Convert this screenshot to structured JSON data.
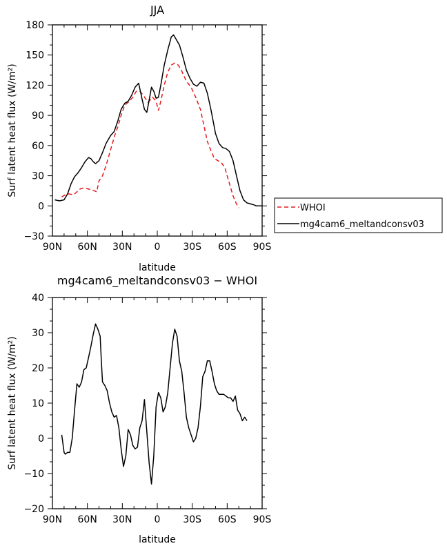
{
  "chart_data": [
    {
      "type": "line",
      "title": "JJA",
      "xlabel": "latitude",
      "ylabel": "Surf latent heat flux (W/m²)",
      "xlim": [
        90,
        -90
      ],
      "ylim": [
        -30,
        180
      ],
      "x_ticks": [
        {
          "value": 90,
          "label": "90N"
        },
        {
          "value": 60,
          "label": "60N"
        },
        {
          "value": 30,
          "label": "30N"
        },
        {
          "value": 0,
          "label": "0"
        },
        {
          "value": -30,
          "label": "30S"
        },
        {
          "value": -60,
          "label": "60S"
        },
        {
          "value": -90,
          "label": "90S"
        }
      ],
      "y_ticks": [
        {
          "value": -30,
          "label": "−30"
        },
        {
          "value": 0,
          "label": "0"
        },
        {
          "value": 30,
          "label": "30"
        },
        {
          "value": 60,
          "label": "60"
        },
        {
          "value": 90,
          "label": "90"
        },
        {
          "value": 120,
          "label": "120"
        },
        {
          "value": 150,
          "label": "150"
        },
        {
          "value": 180,
          "label": "180"
        }
      ],
      "legend": "outside-right",
      "series": [
        {
          "name": "WHOI",
          "color": "#e41a1c",
          "dash": "dashed",
          "points": [
            [
              82,
              9
            ],
            [
              79,
              11
            ],
            [
              76,
              12
            ],
            [
              72,
              11
            ],
            [
              69,
              14
            ],
            [
              66,
              17
            ],
            [
              63,
              18
            ],
            [
              60,
              17
            ],
            [
              56,
              16
            ],
            [
              52,
              14
            ],
            [
              50,
              25
            ],
            [
              47,
              30
            ],
            [
              44,
              40
            ],
            [
              40,
              56
            ],
            [
              36,
              72
            ],
            [
              34,
              78
            ],
            [
              31,
              90
            ],
            [
              28,
              100
            ],
            [
              24,
              104
            ],
            [
              21,
              108
            ],
            [
              18,
              114
            ],
            [
              15,
              114
            ],
            [
              12,
              110
            ],
            [
              8,
              103
            ],
            [
              4,
              108
            ],
            [
              1,
              104
            ],
            [
              -1,
              95
            ],
            [
              -3,
              104
            ],
            [
              -6,
              120
            ],
            [
              -9,
              133
            ],
            [
              -12,
              140
            ],
            [
              -15,
              142
            ],
            [
              -18,
              140
            ],
            [
              -21,
              134
            ],
            [
              -25,
              124
            ],
            [
              -29,
              118
            ],
            [
              -33,
              108
            ],
            [
              -37,
              96
            ],
            [
              -40,
              80
            ],
            [
              -43,
              64
            ],
            [
              -46,
              55
            ],
            [
              -49,
              47
            ],
            [
              -52,
              45
            ],
            [
              -55,
              43
            ],
            [
              -58,
              38
            ],
            [
              -60,
              30
            ],
            [
              -62,
              22
            ],
            [
              -65,
              10
            ],
            [
              -68,
              2
            ],
            [
              -70,
              -2
            ]
          ]
        },
        {
          "name": "mg4cam6_meltandconsv03",
          "color": "#000000",
          "dash": "solid",
          "points": [
            [
              88,
              6
            ],
            [
              84,
              5
            ],
            [
              80,
              6
            ],
            [
              77,
              12
            ],
            [
              74,
              22
            ],
            [
              71,
              29
            ],
            [
              68,
              33
            ],
            [
              65,
              38
            ],
            [
              62,
              44
            ],
            [
              59,
              48
            ],
            [
              57,
              47
            ],
            [
              55,
              44
            ],
            [
              53,
              42
            ],
            [
              50,
              45
            ],
            [
              47,
              53
            ],
            [
              44,
              62
            ],
            [
              40,
              70
            ],
            [
              37,
              74
            ],
            [
              34,
              84
            ],
            [
              31,
              96
            ],
            [
              28,
              102
            ],
            [
              25,
              104
            ],
            [
              22,
              110
            ],
            [
              19,
              118
            ],
            [
              16,
              122
            ],
            [
              13,
              106
            ],
            [
              11,
              96
            ],
            [
              9,
              93
            ],
            [
              7,
              105
            ],
            [
              5,
              118
            ],
            [
              3,
              114
            ],
            [
              1,
              107
            ],
            [
              -1,
              108
            ],
            [
              -3,
              120
            ],
            [
              -6,
              140
            ],
            [
              -9,
              155
            ],
            [
              -12,
              168
            ],
            [
              -14,
              170
            ],
            [
              -16,
              166
            ],
            [
              -19,
              160
            ],
            [
              -22,
              148
            ],
            [
              -25,
              135
            ],
            [
              -28,
              127
            ],
            [
              -31,
              121
            ],
            [
              -34,
              119
            ],
            [
              -37,
              123
            ],
            [
              -40,
              122
            ],
            [
              -43,
              112
            ],
            [
              -46,
              96
            ],
            [
              -48,
              84
            ],
            [
              -50,
              72
            ],
            [
              -53,
              62
            ],
            [
              -56,
              58
            ],
            [
              -59,
              57
            ],
            [
              -62,
              54
            ],
            [
              -65,
              45
            ],
            [
              -68,
              30
            ],
            [
              -71,
              15
            ],
            [
              -74,
              6
            ],
            [
              -77,
              3
            ],
            [
              -80,
              2
            ],
            [
              -83,
              1
            ],
            [
              -85,
              0
            ],
            [
              -88,
              0
            ],
            [
              -90,
              0
            ]
          ]
        }
      ]
    },
    {
      "type": "line",
      "title": "mg4cam6_meltandconsv03 − WHOI",
      "xlabel": "latitude",
      "ylabel": "Surf latent heat flux (W/m²)",
      "xlim": [
        90,
        -90
      ],
      "ylim": [
        -20,
        40
      ],
      "x_ticks": [
        {
          "value": 90,
          "label": "90N"
        },
        {
          "value": 60,
          "label": "60N"
        },
        {
          "value": 30,
          "label": "30N"
        },
        {
          "value": 0,
          "label": "0"
        },
        {
          "value": -30,
          "label": "30S"
        },
        {
          "value": -60,
          "label": "60S"
        },
        {
          "value": -90,
          "label": "90S"
        }
      ],
      "y_ticks": [
        {
          "value": -20,
          "label": "−20"
        },
        {
          "value": -10,
          "label": "−10"
        },
        {
          "value": 0,
          "label": "0"
        },
        {
          "value": 10,
          "label": "10"
        },
        {
          "value": 20,
          "label": "20"
        },
        {
          "value": 30,
          "label": "30"
        },
        {
          "value": 40,
          "label": "40"
        }
      ],
      "series": [
        {
          "color": "#000000",
          "dash": "solid",
          "points": [
            [
              82,
              1
            ],
            [
              80,
              -4
            ],
            [
              79,
              -4.5
            ],
            [
              77,
              -4
            ],
            [
              75,
              -4
            ],
            [
              73,
              0
            ],
            [
              71,
              8
            ],
            [
              69,
              15.5
            ],
            [
              67,
              14.5
            ],
            [
              65,
              16
            ],
            [
              63,
              19.5
            ],
            [
              61,
              20
            ],
            [
              59,
              23
            ],
            [
              57,
              26
            ],
            [
              55,
              29.5
            ],
            [
              53,
              32.5
            ],
            [
              51,
              31
            ],
            [
              49,
              29
            ],
            [
              48,
              22
            ],
            [
              47,
              16
            ],
            [
              45,
              15
            ],
            [
              43,
              13.5
            ],
            [
              41,
              10
            ],
            [
              39,
              7.5
            ],
            [
              37,
              6
            ],
            [
              35,
              6.5
            ],
            [
              33,
              3
            ],
            [
              31,
              -3
            ],
            [
              29,
              -8
            ],
            [
              27,
              -5
            ],
            [
              25,
              2.5
            ],
            [
              23,
              1
            ],
            [
              21,
              -2
            ],
            [
              19,
              -3
            ],
            [
              17,
              -2.5
            ],
            [
              15,
              3
            ],
            [
              13,
              5
            ],
            [
              11,
              11
            ],
            [
              9,
              2
            ],
            [
              7,
              -7
            ],
            [
              5,
              -13
            ],
            [
              3,
              -5
            ],
            [
              1,
              9
            ],
            [
              -1,
              13
            ],
            [
              -3,
              11.5
            ],
            [
              -5,
              7.5
            ],
            [
              -7,
              9
            ],
            [
              -9,
              13
            ],
            [
              -11,
              20
            ],
            [
              -13,
              27
            ],
            [
              -15,
              31
            ],
            [
              -17,
              29
            ],
            [
              -19,
              22
            ],
            [
              -21,
              19
            ],
            [
              -23,
              13
            ],
            [
              -25,
              6
            ],
            [
              -27,
              3
            ],
            [
              -29,
              1
            ],
            [
              -31,
              -1
            ],
            [
              -33,
              0
            ],
            [
              -35,
              3
            ],
            [
              -37,
              9
            ],
            [
              -39,
              17.5
            ],
            [
              -41,
              19
            ],
            [
              -43,
              22
            ],
            [
              -45,
              22
            ],
            [
              -47,
              19
            ],
            [
              -49,
              15.5
            ],
            [
              -51,
              13.5
            ],
            [
              -53,
              12.5
            ],
            [
              -55,
              12.5
            ],
            [
              -57,
              12.5
            ],
            [
              -59,
              12
            ],
            [
              -61,
              11.5
            ],
            [
              -63,
              11.5
            ],
            [
              -65,
              10.5
            ],
            [
              -67,
              12
            ],
            [
              -69,
              8
            ],
            [
              -71,
              7
            ],
            [
              -73,
              5
            ],
            [
              -75,
              6
            ],
            [
              -77,
              5
            ]
          ]
        }
      ]
    }
  ]
}
